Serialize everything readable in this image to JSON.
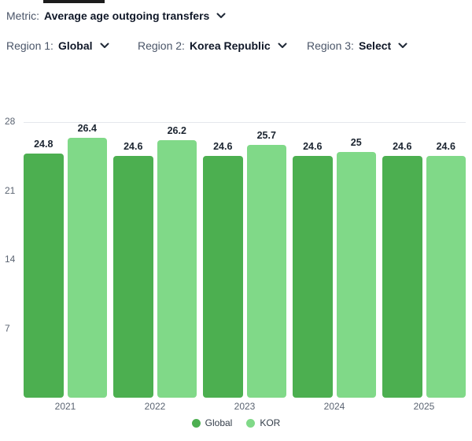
{
  "filters": {
    "metric": {
      "label": "Metric:",
      "value": "Average age outgoing transfers"
    },
    "regions": [
      {
        "label": "Region 1:",
        "value": "Global"
      },
      {
        "label": "Region 2:",
        "value": "Korea Republic"
      },
      {
        "label": "Region 3:",
        "value": "Select"
      }
    ]
  },
  "chart_data": {
    "type": "bar",
    "categories": [
      "2021",
      "2022",
      "2023",
      "2024",
      "2025"
    ],
    "series": [
      {
        "name": "Global",
        "color": "#4caf50",
        "values": [
          24.8,
          24.6,
          24.6,
          24.6,
          24.6
        ]
      },
      {
        "name": "KOR",
        "color": "#80d988",
        "values": [
          26.4,
          26.2,
          25.7,
          25,
          24.6
        ]
      }
    ],
    "title": "",
    "xlabel": "",
    "ylabel": "",
    "ylim": [
      0,
      28
    ],
    "yticks": [
      28,
      21,
      14,
      7
    ],
    "grid": false,
    "gridline_top_value": 28,
    "legend_position": "bottom",
    "label_color": "#1b2430",
    "axis_text_color": "#5b6472"
  }
}
